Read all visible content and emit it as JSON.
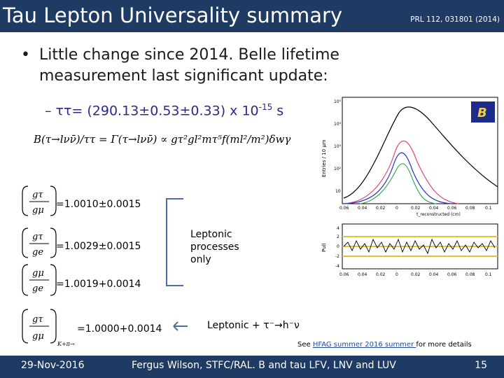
{
  "header": {
    "title": "Tau Lepton Universality summary",
    "reference": "PRL 112, 031801 (2014)"
  },
  "bullet": {
    "marker": "•",
    "text": "Little change since 2014. Belle lifetime measurement last significant update:"
  },
  "sub_bullet": {
    "dash": "–",
    "main": "ττ= (290.13±0.53±0.33) x 10",
    "exponent": "-15",
    "unit": "s"
  },
  "equations": {
    "main": "B(τ→lνν̄)/ττ = Γ(τ→lνν̄) ∝ gτ²gl²mτ⁵f(ml²/m²)δwγ",
    "rows": [
      {
        "num": "gτ",
        "den": "gμ",
        "value": "=1.0010±0.0015"
      },
      {
        "num": "gτ",
        "den": "ge",
        "value": "=1.0029±0.0015"
      },
      {
        "num": "gμ",
        "den": "ge",
        "value": "=1.0019+0.0014"
      },
      {
        "num": "gτ",
        "den": "gμ",
        "sub": "K+π→",
        "value": "=1.0000+0.0014"
      }
    ]
  },
  "annotations": {
    "leptonic_only": "Leptonic processes only",
    "leptonic_plus": "Leptonic + τ⁻→h⁻ν"
  },
  "plot": {
    "logo": "B",
    "y_label_top": "Entries / 10 μm",
    "y_label_bottom": "Pull",
    "x_label": "t_reconstructed (cm)",
    "x_ticks": [
      "0.06",
      "0.04",
      "0.02",
      "0",
      "0.02",
      "0.04",
      "0.06",
      "0.08",
      "0.1"
    ],
    "y_ticks_top": [
      "10⁵",
      "10⁴",
      "10³",
      "10²",
      "10"
    ],
    "y_ticks_bottom": [
      "4",
      "2",
      "0",
      "-2",
      "-4"
    ]
  },
  "note": {
    "prefix": "See ",
    "link": "HFAG summer 2016 summer ",
    "suffix": "for more details"
  },
  "footer": {
    "date": "29-Nov-2016",
    "center": "Fergus Wilson, STFC/RAL. B and tau LFV, LNV and LUV",
    "page": "15"
  },
  "colors": {
    "title_bar": "#1f3b63",
    "accent_blue": "#2a2a8a",
    "link": "#1f4ea8"
  }
}
